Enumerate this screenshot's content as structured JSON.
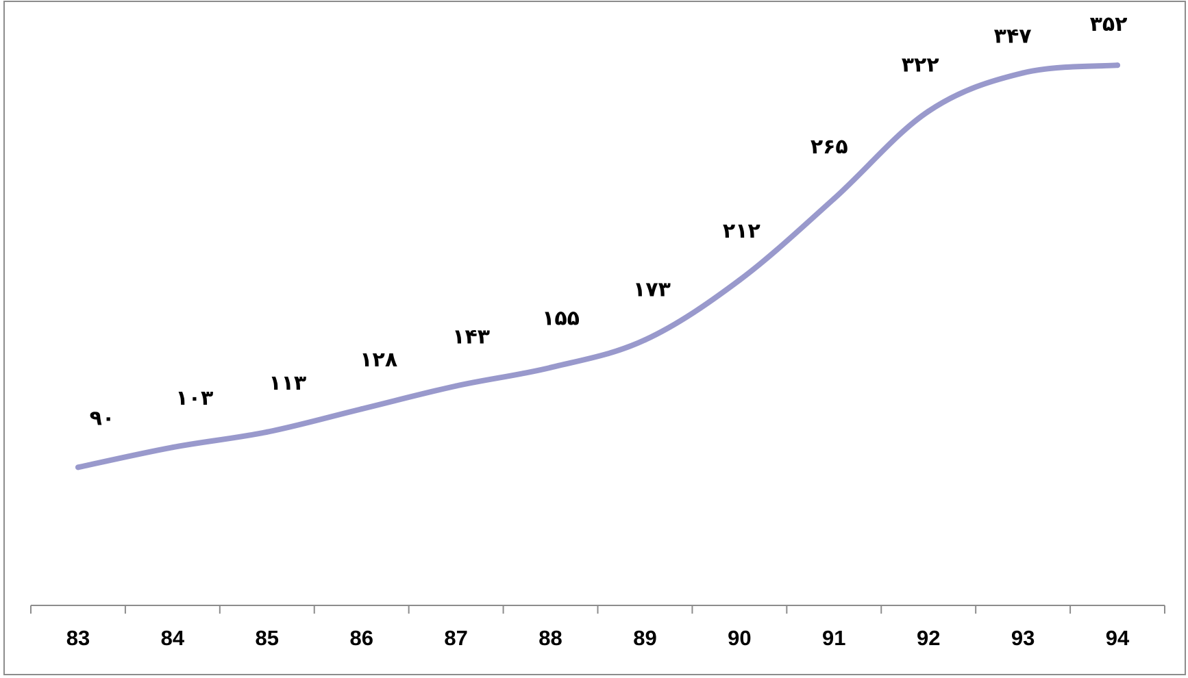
{
  "chart_data": {
    "type": "line",
    "title": "",
    "xlabel": "",
    "ylabel": "",
    "categories": [
      "83",
      "84",
      "85",
      "86",
      "87",
      "88",
      "89",
      "90",
      "91",
      "92",
      "93",
      "94"
    ],
    "series": [
      {
        "values": [
          90,
          103,
          113,
          128,
          143,
          155,
          173,
          212,
          265,
          322,
          347,
          352
        ],
        "data_labels": [
          "۹۰",
          "۱۰۳",
          "۱۱۳",
          "۱۲۸",
          "۱۴۳",
          "۱۵۵",
          "۱۷۳",
          "۲۱۲",
          "۲۶۵",
          "۳۲۲",
          "۳۴۷",
          "۳۵۲"
        ],
        "color": "#9999cc"
      }
    ],
    "ylim": [
      0,
      400
    ],
    "grid": false,
    "legend": "none",
    "smooth": true,
    "y_axis_visible": false
  },
  "colors": {
    "line": "#9999cc",
    "frame": "#8c8c8c",
    "axis": "#8c8c8c",
    "text": "#000000",
    "background": "#ffffff"
  }
}
